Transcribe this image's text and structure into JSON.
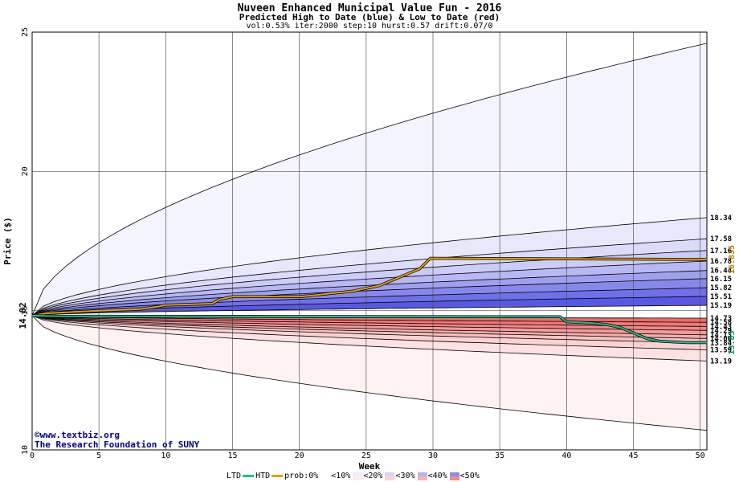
{
  "chart_data": {
    "type": "area",
    "title": "Nuveen Enhanced Municipal Value Fun - 2016",
    "subtitle": "Predicted High to Date (blue) &  Low to Date (red)",
    "params": "vol:0.53% iter:2000 step:10 hurst:0.57 drift:0.07/0",
    "xlabel": "Week",
    "ylabel": "Price ($)",
    "xlim": [
      0,
      50.5
    ],
    "ylim": [
      10,
      25
    ],
    "x_ticks": [
      "0",
      "5",
      "10",
      "15",
      "20",
      "25",
      "30",
      "35",
      "40",
      "45",
      "50"
    ],
    "y_ticks": [
      "10",
      "15",
      "20",
      "25"
    ],
    "start_price": "14.82",
    "start_value": 14.82,
    "high_levels": [
      {
        "label": "18.34",
        "value": 18.34
      },
      {
        "label": "17.58",
        "value": 17.58
      },
      {
        "label": "17.16",
        "value": 17.16
      },
      {
        "label": "16.78",
        "value": 16.78
      },
      {
        "label": "16.44",
        "value": 16.44
      },
      {
        "label": "16.15",
        "value": 16.15
      },
      {
        "label": "15.82",
        "value": 15.82
      },
      {
        "label": "15.51",
        "value": 15.51
      },
      {
        "label": "15.19",
        "value": 15.19
      }
    ],
    "low_levels": [
      {
        "label": "14.73",
        "value": 14.73
      },
      {
        "label": "14.58",
        "value": 14.58
      },
      {
        "label": "14.43",
        "value": 14.43
      },
      {
        "label": "14.29",
        "value": 14.29
      },
      {
        "label": "14.13",
        "value": 14.13
      },
      {
        "label": "14.00",
        "value": 14.0
      },
      {
        "label": "13.84",
        "value": 13.84
      },
      {
        "label": "13.59",
        "value": 13.59
      },
      {
        "label": "13.19",
        "value": 13.19
      }
    ],
    "outer_high_end": 24.6,
    "outer_low_end": 10.7,
    "htd_label": "16.835",
    "htd_path": [
      [
        0,
        14.82
      ],
      [
        1,
        14.9
      ],
      [
        3,
        14.95
      ],
      [
        5,
        15.0
      ],
      [
        8,
        15.05
      ],
      [
        9.5,
        15.15
      ],
      [
        10,
        15.2
      ],
      [
        13.5,
        15.25
      ],
      [
        14,
        15.4
      ],
      [
        15,
        15.5
      ],
      [
        20,
        15.5
      ],
      [
        22,
        15.6
      ],
      [
        24,
        15.7
      ],
      [
        25,
        15.8
      ],
      [
        26,
        15.9
      ],
      [
        27,
        16.1
      ],
      [
        28,
        16.3
      ],
      [
        29,
        16.5
      ],
      [
        29.8,
        16.88
      ],
      [
        50,
        16.84
      ],
      [
        50.5,
        16.835
      ]
    ],
    "ltd_label": "13.85",
    "ltd_path": [
      [
        0,
        14.82
      ],
      [
        2,
        14.8
      ],
      [
        39.5,
        14.78
      ],
      [
        40,
        14.6
      ],
      [
        42,
        14.55
      ],
      [
        43,
        14.5
      ],
      [
        44,
        14.4
      ],
      [
        45,
        14.2
      ],
      [
        46,
        14.0
      ],
      [
        47,
        13.9
      ],
      [
        49,
        13.85
      ],
      [
        50.5,
        13.85
      ]
    ],
    "legend": {
      "ltd": "LTD",
      "htd": "HTD",
      "prob_prefix": "prob:0%",
      "b10": "<10%",
      "b20": "<20%",
      "b30": "<30%",
      "b40": "<40%",
      "b50": "<50%"
    },
    "watermark_line1": "www.textbiz.org",
    "watermark_line2": "The Research Foundation of SUNY",
    "colors": {
      "htd": "#e0a000",
      "ltd": "#20c090",
      "htd_label": "#b08000",
      "ltd_label": "#009060"
    }
  }
}
